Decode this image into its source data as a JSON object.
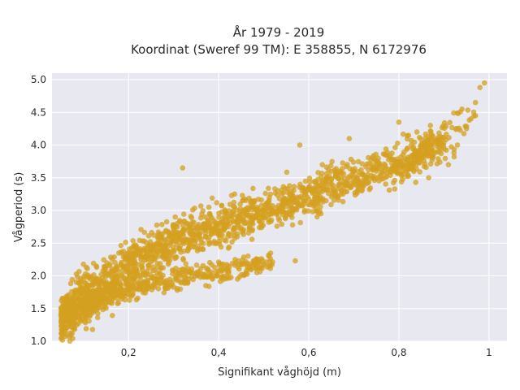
{
  "chart_data": {
    "type": "scatter",
    "title": "År 1979 - 2019",
    "subtitle": "Koordinat (Sweref 99 TM): E 358855, N 6172976",
    "xlabel": "Signifikant våghöjd (m)",
    "ylabel": "Vågperiod (s)",
    "xlim": [
      0.03,
      1.04
    ],
    "ylim": [
      1.0,
      5.1
    ],
    "x_ticks": [
      0.2,
      0.4,
      0.6,
      0.8,
      1
    ],
    "x_tick_labels": [
      "0,2",
      "0,4",
      "0,6",
      "0,8",
      "1"
    ],
    "y_ticks": [
      1.0,
      1.5,
      2.0,
      2.5,
      3.0,
      3.5,
      4.0,
      4.5,
      5.0
    ],
    "y_tick_labels": [
      "1.0",
      "1.5",
      "2.0",
      "2.5",
      "3.0",
      "3.5",
      "4.0",
      "4.5",
      "5.0"
    ],
    "grid": true,
    "colors": {
      "marker": "#d4a020",
      "plot_background": "#e8e8f0",
      "grid": "#ffffff"
    },
    "series": [
      {
        "trend_main": [
          [
            0.05,
            1.3
          ],
          [
            0.1,
            1.6
          ],
          [
            0.2,
            2.15
          ],
          [
            0.3,
            2.5
          ],
          [
            0.4,
            2.75
          ],
          [
            0.5,
            3.0
          ],
          [
            0.6,
            3.25
          ],
          [
            0.7,
            3.5
          ],
          [
            0.8,
            3.7
          ],
          [
            0.9,
            4.05
          ],
          [
            0.98,
            4.55
          ]
        ],
        "trend_lower_branch": [
          [
            0.1,
            1.55
          ],
          [
            0.2,
            1.8
          ],
          [
            0.3,
            1.95
          ],
          [
            0.4,
            2.05
          ],
          [
            0.5,
            2.2
          ],
          [
            0.55,
            2.28
          ]
        ],
        "outliers": [
          [
            0.05,
            1.4
          ],
          [
            0.12,
            1.18
          ],
          [
            0.32,
            3.65
          ],
          [
            0.38,
            2.95
          ],
          [
            0.5,
            3.0
          ],
          [
            0.58,
            4.0
          ],
          [
            0.6,
            3.35
          ],
          [
            0.63,
            3.7
          ],
          [
            0.69,
            4.1
          ],
          [
            0.72,
            3.4
          ],
          [
            0.75,
            3.6
          ],
          [
            0.78,
            3.8
          ],
          [
            0.8,
            4.35
          ],
          [
            0.84,
            4.2
          ],
          [
            0.87,
            4.3
          ],
          [
            0.91,
            3.7
          ],
          [
            0.93,
            4.0
          ],
          [
            0.94,
            4.55
          ],
          [
            0.96,
            4.4
          ],
          [
            0.97,
            4.65
          ],
          [
            0.98,
            4.88
          ],
          [
            0.99,
            4.95
          ],
          [
            0.95,
            4.25
          ],
          [
            0.97,
            4.45
          ],
          [
            0.57,
            2.23
          ],
          [
            0.49,
            2.2
          ]
        ]
      }
    ]
  }
}
